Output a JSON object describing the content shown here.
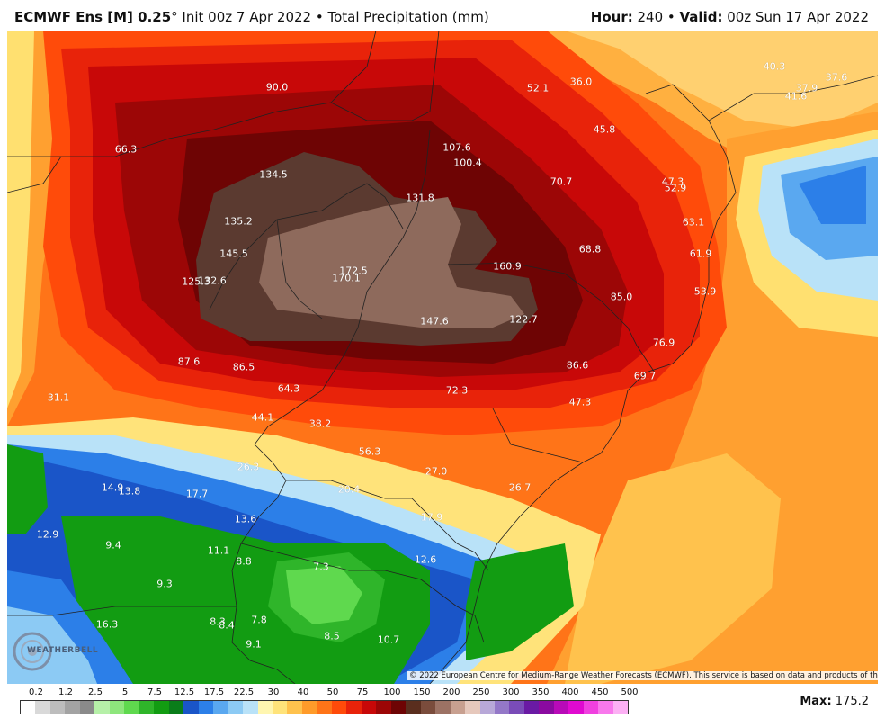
{
  "header": {
    "model": "ECMWF Ens [M] 0.25",
    "degree": "°",
    "init": " Init 00z 7 Apr 2022",
    "bullet": " • ",
    "product": "Total Precipitation (mm)",
    "hour_label": "Hour:",
    "hour_value": " 240",
    "valid_label": "Valid:",
    "valid_value": " 00z Sun 17 Apr 2022"
  },
  "map": {
    "labels": [
      "90.0",
      "52.1",
      "36.0",
      "40.3",
      "37.6",
      "37.9",
      "41.6",
      "107.6",
      "100.4",
      "66.3",
      "134.5",
      "45.8",
      "70.7",
      "47.3",
      "52.9",
      "131.8",
      "135.2",
      "63.1",
      "145.5",
      "68.8",
      "61.9",
      "172.5",
      "160.9",
      "125.3",
      "132.6",
      "170.1",
      "85.0",
      "53.9",
      "147.6",
      "122.7",
      "76.9",
      "87.6",
      "86.5",
      "86.6",
      "69.7",
      "64.3",
      "72.3",
      "31.1",
      "47.3",
      "44.1",
      "38.2",
      "56.3",
      "26.3",
      "27.0",
      "14.9",
      "13.8",
      "17.7",
      "20.4",
      "26.7",
      "13.6",
      "17.9",
      "12.9",
      "9.4",
      "11.1",
      "12.6",
      "8.8",
      "7.3",
      "9.3",
      "8.3",
      "8.4",
      "7.8",
      "16.3",
      "9.1",
      "8.5",
      "10.7"
    ],
    "copyright": "© 2022 European Centre for Medium-Range Weather Forecasts (ECMWF). This service is based on data and products of the ECMWF.",
    "logo_text": "WEATHERBELL"
  },
  "scale": {
    "ticks": [
      "0.2",
      "1.2",
      "2.5",
      "5",
      "7.5",
      "12.5",
      "17.5",
      "22.5",
      "30",
      "40",
      "50",
      "75",
      "100",
      "150",
      "200",
      "250",
      "300",
      "350",
      "400",
      "450",
      "500"
    ],
    "colors": [
      "#ffffff",
      "#d9d9d9",
      "#bdbdbd",
      "#a3a3a3",
      "#8a8a8a",
      "#b6f0a8",
      "#8ee67c",
      "#5fd94e",
      "#2fb52a",
      "#129c12",
      "#0a7d1a",
      "#1a55c8",
      "#2c7fe8",
      "#5aa8f0",
      "#8ccaf4",
      "#b9e2f8",
      "#fff6b0",
      "#ffe37a",
      "#ffc24d",
      "#ff9b2a",
      "#ff7418",
      "#ff4b0a",
      "#e8230a",
      "#c80808",
      "#9c0606",
      "#6e0404",
      "#5a2e1e",
      "#7a4c3c",
      "#9c7264",
      "#c8a090",
      "#e6c8bc",
      "#b8a8d8",
      "#9478c8",
      "#7a4cb8",
      "#6a1aa4",
      "#8a0aa0",
      "#b80ab8",
      "#e00ad0",
      "#f040e0",
      "#f878ec",
      "#fcb0f4"
    ],
    "max_label": "Max:",
    "max_value": " 175.2"
  },
  "colors": {
    "dark_brown": "#5b3a30",
    "light_brown": "#8e6a5c",
    "dark_red": "#a00a0a",
    "red": "#e0200a",
    "orange": "#ff6a12",
    "light_orange": "#ffa030",
    "yellow": "#ffe070",
    "light_blue": "#a8d8f4",
    "blue": "#2060d0",
    "green": "#1a9a1a",
    "light_green": "#60e060"
  }
}
